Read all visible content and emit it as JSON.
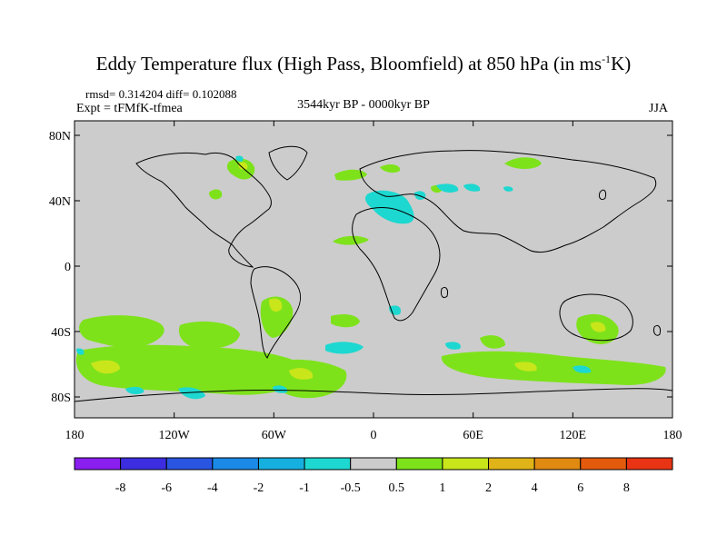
{
  "title": {
    "main": "Eddy Temperature flux (High Pass, Bloomfield) at 850 hPa (in ms",
    "sup": "-1",
    "tail": "K)"
  },
  "stats": "rmsd= 0.314204  diff= 0.102088",
  "experiment": "Expt = tFMfK-tfmea",
  "period": "3544kyr BP - 0000kyr BP",
  "season": "JJA",
  "lat_ticks": [
    "80N",
    "40N",
    "0",
    "40S",
    "80S"
  ],
  "lon_ticks": [
    "180",
    "120W",
    "60W",
    "0",
    "60E",
    "120E",
    "180"
  ],
  "colorbar": {
    "labels": [
      "-8",
      "-6",
      "-4",
      "-2",
      "-1",
      "-0.5",
      "0.5",
      "1",
      "2",
      "4",
      "6",
      "8"
    ],
    "colors": [
      "#8a1ff0",
      "#3c2ee0",
      "#2a55e0",
      "#1a8ae6",
      "#16b0e0",
      "#1dd8d0",
      "#cccccc",
      "#7ee21b",
      "#c8e61a",
      "#e0b418",
      "#e08a12",
      "#e45a0c",
      "#e83414"
    ]
  },
  "map": {
    "background": "#cccccc",
    "coast_color": "#000000",
    "regions": [
      {
        "name": "kara-sea",
        "lon": 64,
        "lat": 73,
        "color": "#7ee21b"
      },
      {
        "name": "hudson-bay",
        "lon": -83,
        "lat": 62,
        "color": "#7ee21b"
      },
      {
        "name": "mediterranean",
        "lon": 15,
        "lat": 38,
        "color": "#1dd8d0"
      },
      {
        "name": "southern-ocean",
        "lon": 110,
        "lat": -60,
        "color": "#7ee21b"
      }
    ]
  }
}
